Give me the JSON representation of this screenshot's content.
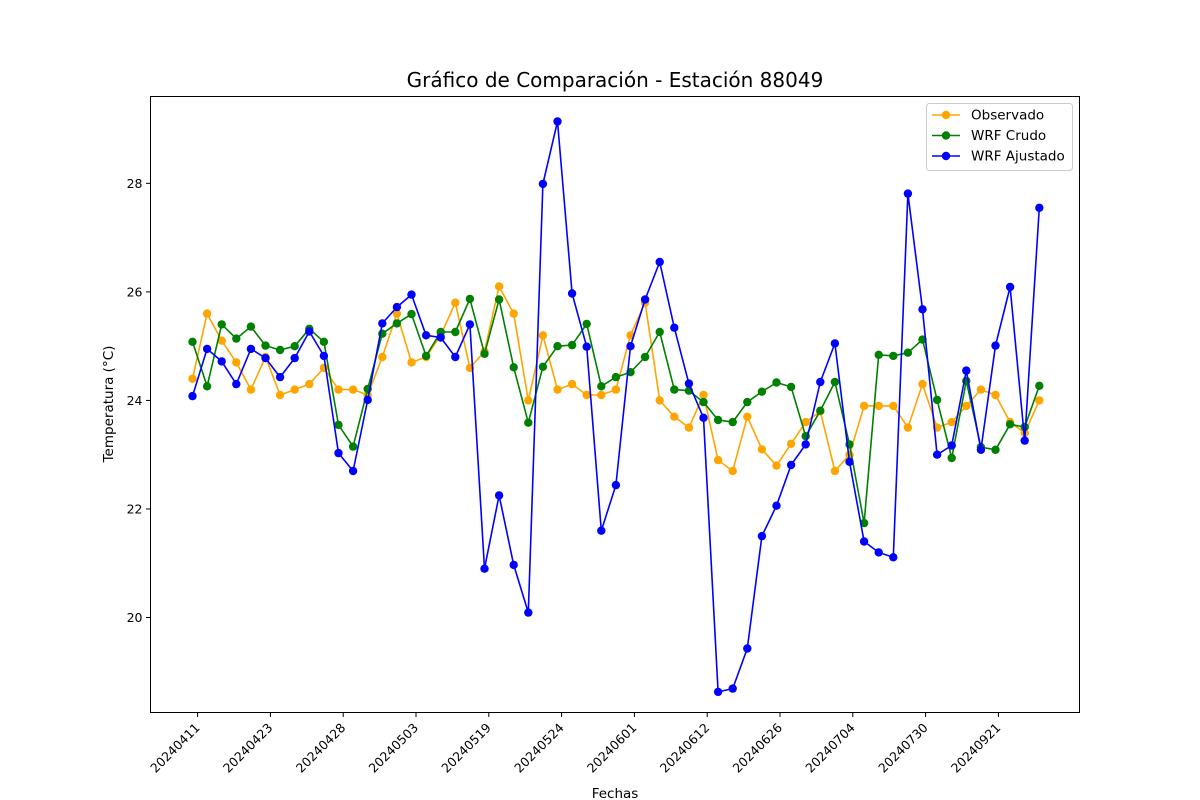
{
  "chart_data": {
    "type": "line",
    "title": "Gráfico de Comparación - Estación 88049",
    "xlabel": "Fechas",
    "ylabel": "Temperatura (°C)",
    "ylim": [
      18.25,
      29.6
    ],
    "yticks": [
      20,
      22,
      24,
      26,
      28
    ],
    "xtick_labels": [
      "20240411",
      "20240423",
      "20240428",
      "20240503",
      "20240519",
      "20240524",
      "20240601",
      "20240612",
      "20240626",
      "20240704",
      "20240730",
      "20240921"
    ],
    "legend_position": "top-right",
    "grid": false,
    "series": [
      {
        "name": "Observado",
        "color": "#ffa500",
        "values": [
          24.4,
          25.6,
          25.1,
          24.7,
          24.2,
          24.8,
          24.1,
          24.2,
          24.3,
          24.6,
          24.2,
          24.2,
          24.1,
          24.8,
          25.6,
          24.7,
          24.8,
          25.2,
          25.8,
          24.6,
          24.9,
          26.1,
          25.6,
          24.0,
          25.2,
          24.2,
          24.3,
          24.1,
          24.1,
          24.2,
          25.2,
          25.8,
          24.0,
          23.7,
          23.5,
          24.1,
          22.9,
          22.7,
          23.7,
          23.1,
          22.8,
          23.2,
          23.6,
          23.8,
          22.7,
          23.0,
          23.9,
          23.9,
          23.9,
          23.5,
          24.3,
          23.5,
          23.6,
          23.9,
          24.2,
          24.1,
          23.6,
          23.4,
          24.0
        ]
      },
      {
        "name": "WRF Crudo",
        "color": "#008000",
        "values": [
          25.08,
          24.26,
          25.4,
          25.14,
          25.36,
          25.01,
          24.93,
          25.0,
          25.32,
          25.08,
          23.55,
          23.15,
          24.21,
          25.23,
          25.42,
          25.59,
          24.82,
          25.26,
          25.26,
          25.87,
          24.86,
          25.86,
          24.61,
          23.59,
          24.62,
          25.0,
          25.02,
          25.41,
          24.26,
          24.43,
          24.52,
          24.8,
          25.26,
          24.2,
          24.18,
          23.97,
          23.64,
          23.6,
          23.97,
          24.16,
          24.33,
          24.25,
          23.34,
          23.81,
          24.34,
          23.19,
          21.74,
          24.84,
          24.82,
          24.88,
          25.12,
          24.01,
          22.94,
          24.36,
          23.14,
          23.09,
          23.56,
          23.51,
          24.27
        ]
      },
      {
        "name": "WRF Ajustado",
        "color": "#0000ff",
        "values": [
          24.08,
          24.95,
          24.72,
          24.3,
          24.95,
          24.78,
          24.43,
          24.78,
          25.27,
          24.82,
          23.03,
          22.7,
          24.01,
          25.42,
          25.72,
          25.95,
          25.2,
          25.16,
          24.8,
          25.4,
          20.9,
          22.25,
          20.97,
          20.09,
          27.99,
          29.14,
          25.97,
          24.99,
          21.6,
          22.44,
          25.0,
          25.86,
          26.55,
          25.34,
          24.31,
          23.68,
          18.63,
          18.69,
          19.43,
          21.5,
          22.06,
          22.81,
          23.19,
          24.34,
          25.05,
          22.87,
          21.4,
          21.2,
          21.11,
          27.81,
          25.68,
          23.0,
          23.17,
          24.55,
          23.09,
          25.01,
          26.09,
          23.26,
          27.55
        ]
      }
    ]
  }
}
